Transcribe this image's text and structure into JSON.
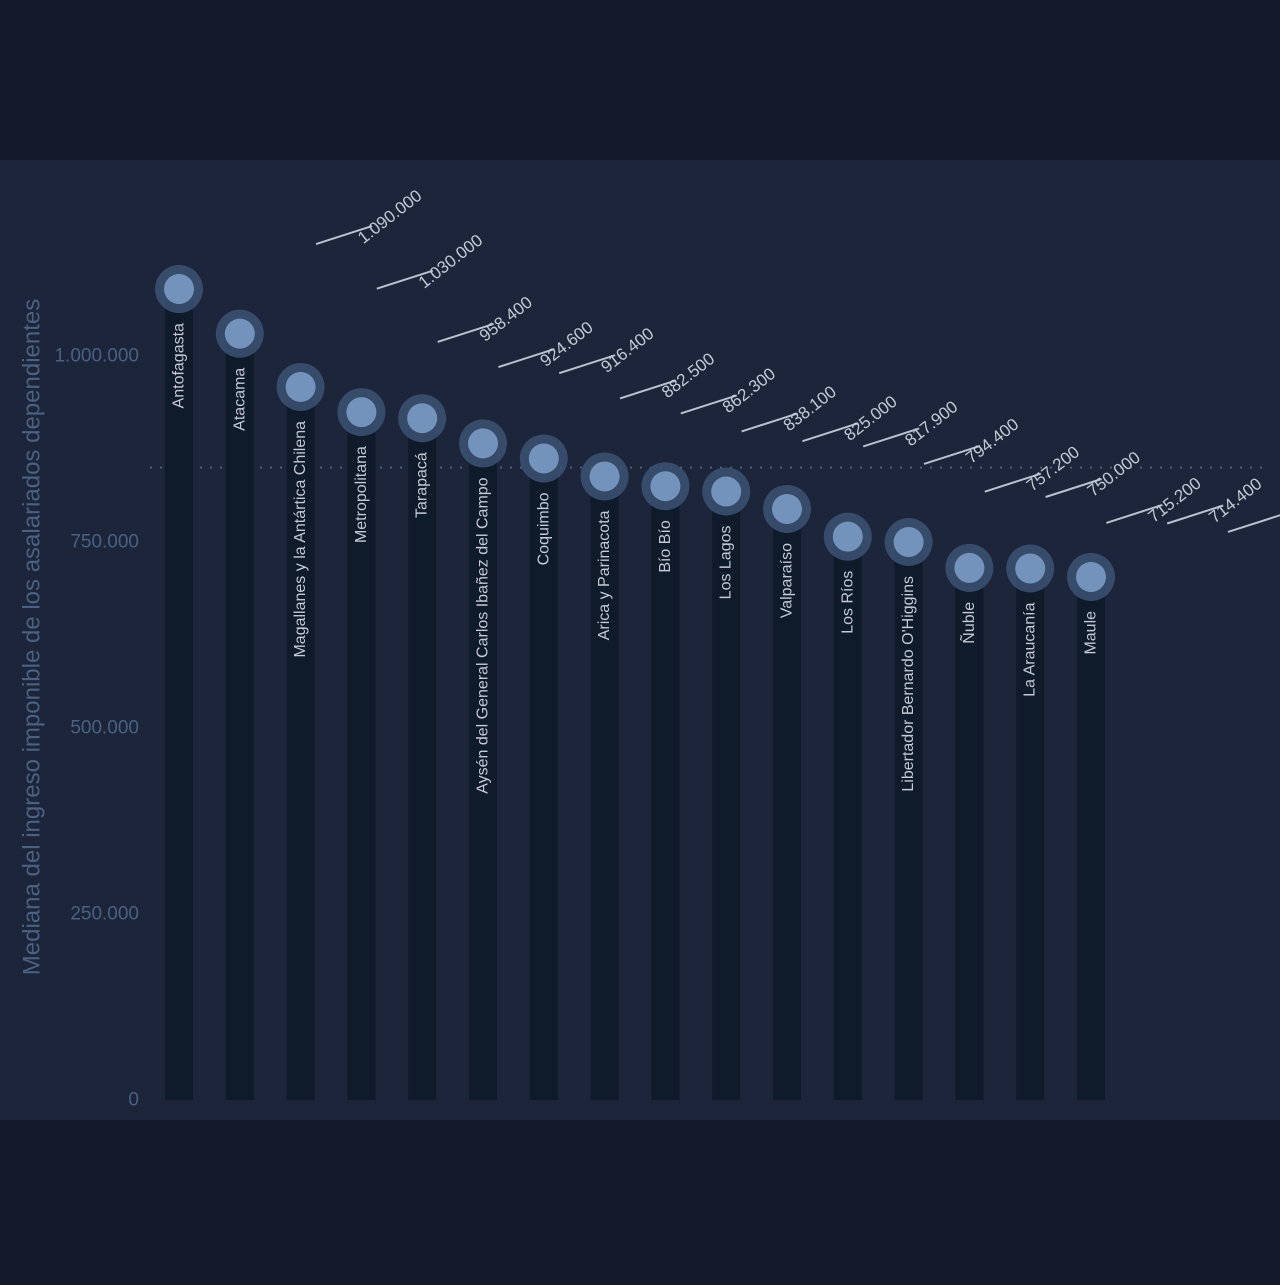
{
  "colors": {
    "page_background": "#141a2c",
    "panel_background": "#1c2539",
    "bar": "#0f1a2b",
    "marker_fill": "#7393bd",
    "marker_halo": "#3e5578",
    "axis_text": "#4a6183",
    "label_text": "#c3cad6",
    "leader_line": "#b9c2d0",
    "reference_line": "#4e5f79"
  },
  "chart_data": {
    "type": "bar",
    "categories": [
      "Antofagasta",
      "Atacama",
      "Magallanes y la Antártica Chilena",
      "Metropolitana",
      "Tarapacá",
      "Aysén del General Carlos Ibañez del Campo",
      "Coquimbo",
      "Arica y Parinacota",
      "Bío Bío",
      "Los Lagos",
      "Valparaíso",
      "Los Ríos",
      "Libertador Bernardo O'Higgins",
      "Ñuble",
      "La Araucanía",
      "Maule"
    ],
    "values": [
      1090000,
      1030000,
      958400,
      924600,
      916400,
      882500,
      862300,
      838100,
      825000,
      817900,
      794400,
      757200,
      750000,
      715200,
      714400,
      703000
    ],
    "value_labels": [
      "1.090.000",
      "1.030.000",
      "958.400",
      "924.600",
      "916.400",
      "882.500",
      "862.300",
      "838.100",
      "825.000",
      "817.900",
      "794.400",
      "757.200",
      "750.000",
      "715.200",
      "714.400",
      ""
    ],
    "ylabel": "Mediana del ingreso imponible de los asalariados dependientes",
    "xlabel": "",
    "title": "",
    "ylim": [
      0,
      1120000
    ],
    "yticks": [
      0,
      250000,
      500000,
      750000,
      1000000
    ],
    "ytick_labels": [
      "0",
      "250.000",
      "500.000",
      "750.000",
      "1.000.000"
    ],
    "reference_line": 850000,
    "grid": false,
    "legend": "none"
  }
}
